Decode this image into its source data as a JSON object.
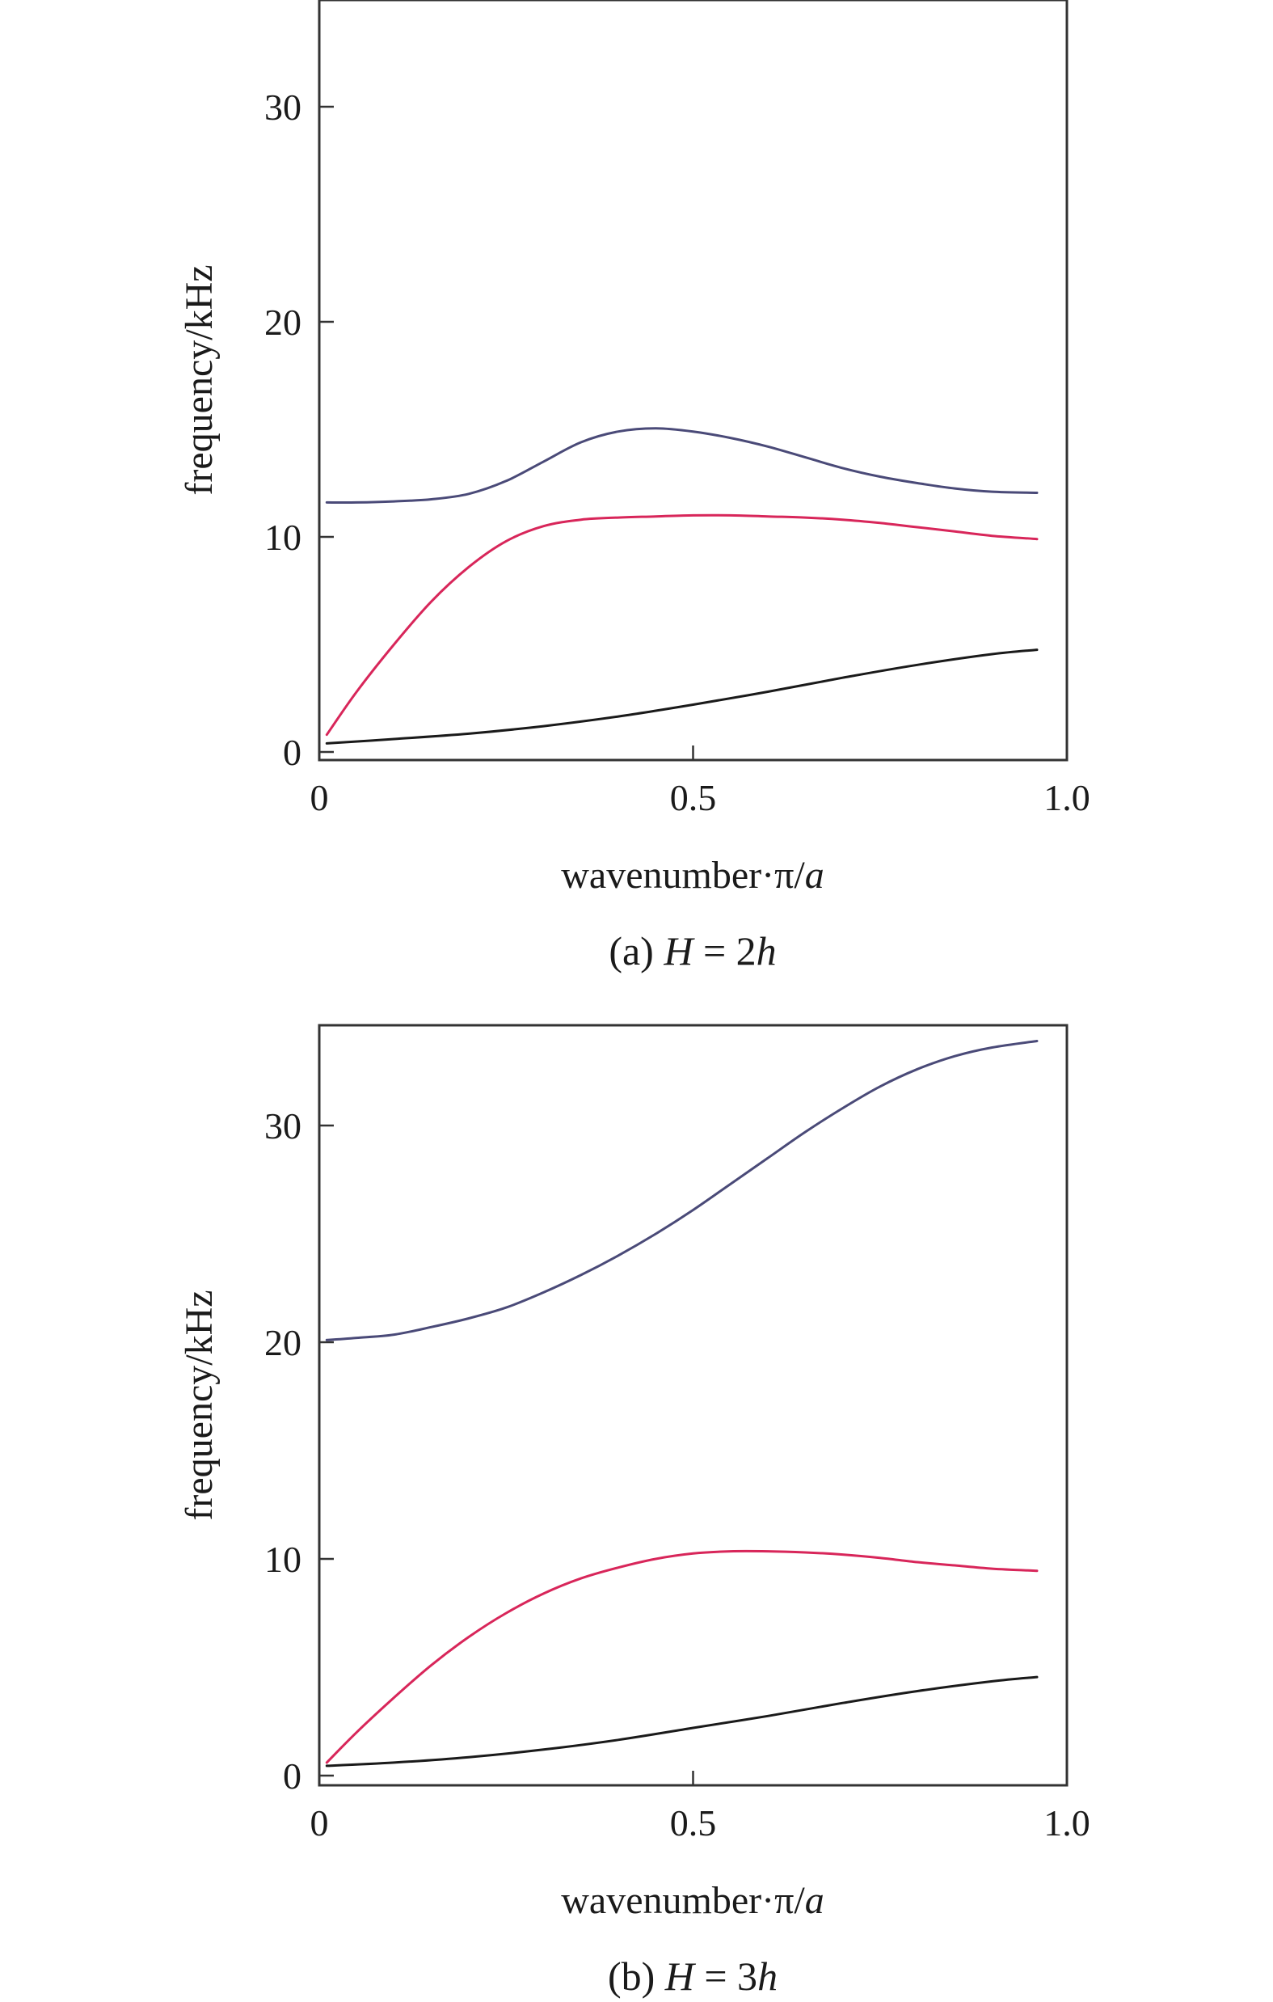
{
  "chart_data": [
    {
      "type": "line",
      "caption": {
        "prefix": "(a) ",
        "var": "H",
        "mid": " = 2",
        "sub": "h"
      },
      "xlabel": {
        "text": "wavenumber·π/",
        "var": "a"
      },
      "ylabel": "frequency/kHz",
      "xlim": [
        0,
        1.0
      ],
      "ylim": [
        0,
        35
      ],
      "xticks": [
        0,
        0.5,
        1.0
      ],
      "xtick_labels": [
        "0",
        "0.5",
        "1.0"
      ],
      "yticks": [
        0,
        10,
        20,
        30
      ],
      "ytick_labels": [
        "0",
        "10",
        "20",
        "30"
      ],
      "grid": false,
      "series": [
        {
          "color": "#4a4a78",
          "x": [
            0.01,
            0.05,
            0.1,
            0.15,
            0.2,
            0.25,
            0.3,
            0.35,
            0.4,
            0.45,
            0.5,
            0.55,
            0.6,
            0.65,
            0.7,
            0.75,
            0.8,
            0.85,
            0.9,
            0.96
          ],
          "y": [
            11.6,
            11.6,
            11.65,
            11.75,
            12.0,
            12.6,
            13.5,
            14.4,
            14.9,
            15.05,
            14.9,
            14.6,
            14.2,
            13.7,
            13.2,
            12.8,
            12.5,
            12.25,
            12.1,
            12.05
          ]
        },
        {
          "color": "#d8265a",
          "x": [
            0.01,
            0.05,
            0.1,
            0.15,
            0.2,
            0.25,
            0.3,
            0.35,
            0.4,
            0.45,
            0.5,
            0.55,
            0.6,
            0.65,
            0.7,
            0.75,
            0.8,
            0.85,
            0.9,
            0.96
          ],
          "y": [
            0.8,
            2.8,
            5.0,
            7.0,
            8.6,
            9.8,
            10.5,
            10.8,
            10.9,
            10.95,
            11.0,
            11.0,
            10.95,
            10.9,
            10.8,
            10.65,
            10.45,
            10.25,
            10.05,
            9.9
          ]
        },
        {
          "color": "#1a1a1a",
          "x": [
            0.01,
            0.1,
            0.2,
            0.3,
            0.4,
            0.5,
            0.6,
            0.7,
            0.8,
            0.9,
            0.96
          ],
          "y": [
            0.4,
            0.6,
            0.85,
            1.2,
            1.65,
            2.2,
            2.8,
            3.45,
            4.05,
            4.55,
            4.75
          ]
        }
      ]
    },
    {
      "type": "line",
      "caption": {
        "prefix": "(b) ",
        "var": "H",
        "mid": " = 3",
        "sub": "h"
      },
      "xlabel": {
        "text": "wavenumber·π/",
        "var": "a"
      },
      "ylabel": "frequency/kHz",
      "xlim": [
        0,
        1.0
      ],
      "ylim": [
        0,
        35
      ],
      "xticks": [
        0,
        0.5,
        1.0
      ],
      "xtick_labels": [
        "0",
        "0.5",
        "1.0"
      ],
      "yticks": [
        0,
        10,
        20,
        30
      ],
      "ytick_labels": [
        "0",
        "10",
        "20",
        "30"
      ],
      "grid": false,
      "series": [
        {
          "color": "#4a4a78",
          "x": [
            0.01,
            0.05,
            0.1,
            0.15,
            0.2,
            0.25,
            0.3,
            0.35,
            0.4,
            0.45,
            0.5,
            0.55,
            0.6,
            0.65,
            0.7,
            0.75,
            0.8,
            0.85,
            0.9,
            0.96
          ],
          "y": [
            20.1,
            20.2,
            20.35,
            20.7,
            21.1,
            21.6,
            22.3,
            23.1,
            24.0,
            25.0,
            26.1,
            27.3,
            28.5,
            29.7,
            30.8,
            31.8,
            32.6,
            33.2,
            33.6,
            33.9
          ]
        },
        {
          "color": "#d8265a",
          "x": [
            0.01,
            0.05,
            0.1,
            0.15,
            0.2,
            0.25,
            0.3,
            0.35,
            0.4,
            0.45,
            0.5,
            0.55,
            0.6,
            0.65,
            0.7,
            0.75,
            0.8,
            0.85,
            0.9,
            0.96
          ],
          "y": [
            0.6,
            2.0,
            3.6,
            5.1,
            6.4,
            7.5,
            8.4,
            9.1,
            9.6,
            10.0,
            10.25,
            10.35,
            10.35,
            10.3,
            10.2,
            10.05,
            9.85,
            9.7,
            9.55,
            9.45
          ]
        },
        {
          "color": "#1a1a1a",
          "x": [
            0.01,
            0.1,
            0.2,
            0.3,
            0.4,
            0.5,
            0.6,
            0.7,
            0.8,
            0.9,
            0.96
          ],
          "y": [
            0.45,
            0.6,
            0.85,
            1.2,
            1.65,
            2.2,
            2.75,
            3.35,
            3.9,
            4.35,
            4.55
          ]
        }
      ]
    }
  ]
}
